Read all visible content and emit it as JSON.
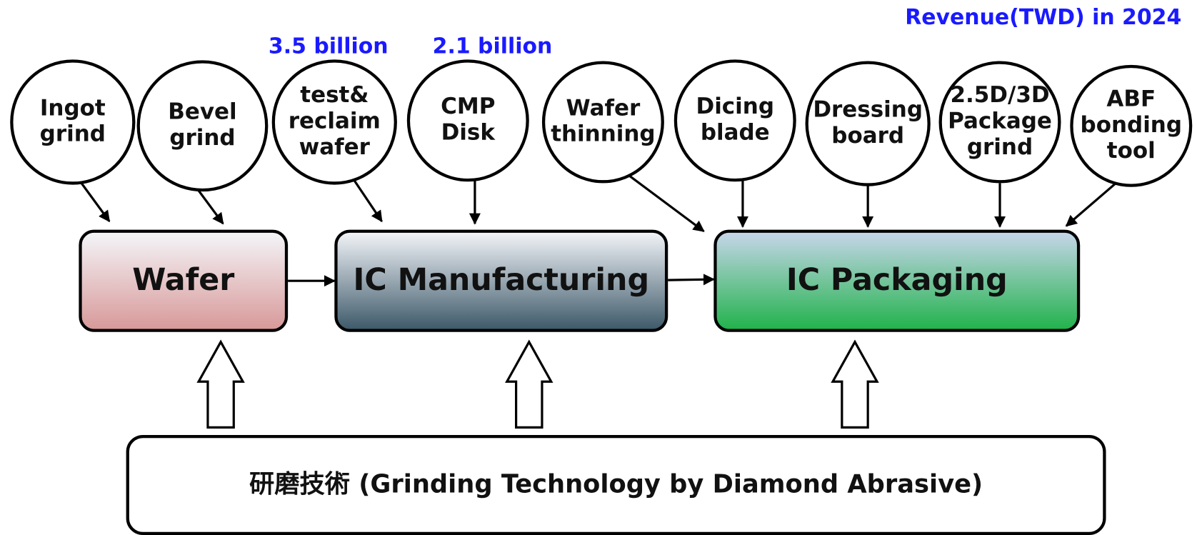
{
  "header": {
    "revenue_title": "Revenue(TWD) in 2024"
  },
  "revenues": [
    {
      "label": "3.5 billion"
    },
    {
      "label": "2.1 billion"
    }
  ],
  "nodes": [
    {
      "lines": [
        "Ingot",
        "grind"
      ]
    },
    {
      "lines": [
        "Bevel",
        "grind"
      ]
    },
    {
      "lines": [
        "test&",
        "reclaim",
        "wafer"
      ]
    },
    {
      "lines": [
        "CMP",
        "Disk"
      ]
    },
    {
      "lines": [
        "Wafer",
        "thinning"
      ]
    },
    {
      "lines": [
        "Dicing",
        "blade"
      ]
    },
    {
      "lines": [
        "Dressing",
        "board"
      ]
    },
    {
      "lines": [
        "2.5D/3D",
        "Package",
        "grind"
      ]
    },
    {
      "lines": [
        "ABF",
        "bonding",
        "tool"
      ]
    }
  ],
  "stages": [
    {
      "label": "Wafer"
    },
    {
      "label": "IC Manufacturing"
    },
    {
      "label": "IC Packaging"
    }
  ],
  "base": {
    "label": "研磨技術 (Grinding Technology by Diamond Abrasive)"
  }
}
